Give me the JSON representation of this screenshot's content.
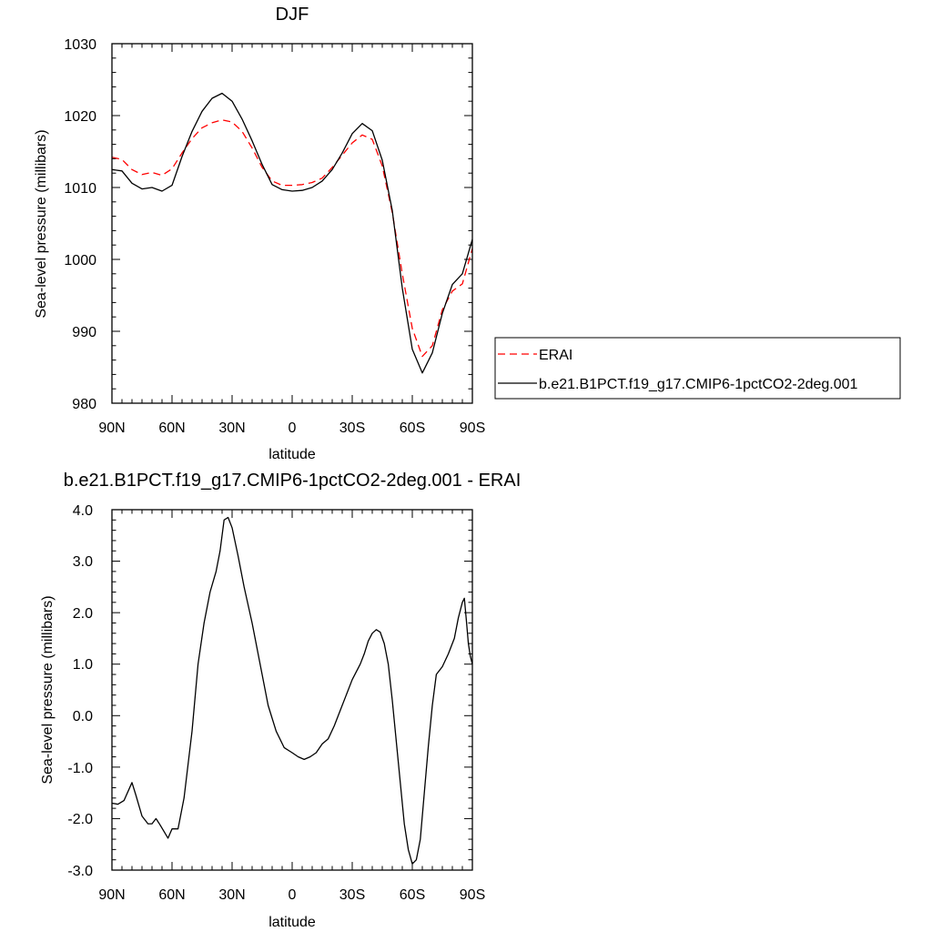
{
  "chart_data": [
    {
      "type": "line",
      "title": "DJF",
      "xlabel": "latitude",
      "ylabel": "Sea-level pressure (millibars)",
      "xlim": [
        90,
        -90
      ],
      "ylim": [
        980,
        1030
      ],
      "x_ticks": [
        90,
        60,
        30,
        0,
        -30,
        -60,
        -90
      ],
      "x_tick_labels": [
        "90N",
        "60N",
        "30N",
        "0",
        "30S",
        "60S",
        "90S"
      ],
      "y_ticks": [
        980,
        990,
        1000,
        1010,
        1020,
        1030
      ],
      "y_tick_labels": [
        "980",
        "990",
        "1000",
        "1010",
        "1020",
        "1030"
      ],
      "grid": false,
      "legend_position": "outside-right",
      "series": [
        {
          "name": "ERAI",
          "color": "#ff0000",
          "style": "dashed",
          "x": [
            90,
            85,
            80,
            75,
            70,
            65,
            60,
            55,
            50,
            45,
            40,
            35,
            30,
            25,
            20,
            15,
            10,
            5,
            0,
            -5,
            -10,
            -15,
            -20,
            -25,
            -30,
            -35,
            -40,
            -45,
            -50,
            -55,
            -60,
            -65,
            -70,
            -75,
            -80,
            -85,
            -90
          ],
          "values": [
            1014.2,
            1013.9,
            1012.5,
            1011.8,
            1012.1,
            1011.7,
            1012.6,
            1014.8,
            1016.8,
            1018.3,
            1019.0,
            1019.4,
            1019.1,
            1017.8,
            1015.5,
            1012.8,
            1010.9,
            1010.3,
            1010.3,
            1010.4,
            1010.7,
            1011.3,
            1012.8,
            1014.5,
            1016.2,
            1017.3,
            1016.7,
            1013.0,
            1006.5,
            998.0,
            990.4,
            986.5,
            988.0,
            993.0,
            995.6,
            996.6,
            1001.5
          ]
        },
        {
          "name": "b.e21.B1PCT.f19_g17.CMIP6-1pctCO2-2deg.001",
          "color": "#000000",
          "style": "solid",
          "x": [
            90,
            85,
            80,
            75,
            70,
            65,
            60,
            55,
            50,
            45,
            40,
            35,
            30,
            25,
            20,
            15,
            10,
            5,
            0,
            -5,
            -10,
            -15,
            -20,
            -25,
            -30,
            -35,
            -40,
            -45,
            -50,
            -55,
            -60,
            -65,
            -70,
            -75,
            -80,
            -85,
            -90
          ],
          "values": [
            1012.5,
            1012.3,
            1010.6,
            1009.8,
            1010.0,
            1009.5,
            1010.3,
            1014.3,
            1017.8,
            1020.6,
            1022.4,
            1023.1,
            1022.0,
            1019.5,
            1016.5,
            1013.2,
            1010.4,
            1009.7,
            1009.5,
            1009.6,
            1010.0,
            1010.9,
            1012.5,
            1014.8,
            1017.5,
            1018.9,
            1017.9,
            1013.8,
            1006.8,
            996.0,
            987.5,
            984.2,
            987.0,
            992.5,
            996.5,
            998.0,
            1002.8
          ]
        }
      ]
    },
    {
      "type": "line",
      "title": "b.e21.B1PCT.f19_g17.CMIP6-1pctCO2-2deg.001 - ERAI",
      "xlabel": "latitude",
      "ylabel": "Sea-level pressure (millibars)",
      "xlim": [
        90,
        -90
      ],
      "ylim": [
        -3.0,
        4.0
      ],
      "x_ticks": [
        90,
        60,
        30,
        0,
        -30,
        -60,
        -90
      ],
      "x_tick_labels": [
        "90N",
        "60N",
        "30N",
        "0",
        "30S",
        "60S",
        "90S"
      ],
      "y_ticks": [
        -3,
        -2,
        -1,
        0,
        1,
        2,
        3,
        4
      ],
      "y_tick_labels": [
        "-3.0",
        "-2.0",
        "-1.0",
        "0.0",
        "1.0",
        "2.0",
        "3.0",
        "4.0"
      ],
      "grid": false,
      "series": [
        {
          "color": "#000000",
          "style": "solid",
          "x": [
            90,
            87,
            84,
            80,
            78,
            75,
            72,
            70,
            68,
            66,
            64,
            62,
            60,
            57,
            54,
            50,
            47,
            44,
            41,
            38,
            36,
            34,
            32,
            30,
            27,
            24,
            20,
            16,
            12,
            8,
            4,
            0,
            -3,
            -6,
            -9,
            -12,
            -15,
            -18,
            -21,
            -24,
            -27,
            -30,
            -32,
            -34,
            -36,
            -38,
            -40,
            -42,
            -44,
            -46,
            -48,
            -50,
            -52,
            -54,
            -56,
            -58,
            -60,
            -62,
            -64,
            -66,
            -68,
            -70,
            -72,
            -75,
            -78,
            -81,
            -83,
            -85,
            -86,
            -87,
            -88,
            -89,
            -90
          ],
          "values": [
            -1.7,
            -1.72,
            -1.65,
            -1.3,
            -1.55,
            -1.95,
            -2.1,
            -2.1,
            -2.0,
            -2.12,
            -2.25,
            -2.38,
            -2.2,
            -2.2,
            -1.6,
            -0.3,
            1.0,
            1.8,
            2.4,
            2.8,
            3.2,
            3.8,
            3.85,
            3.65,
            3.1,
            2.5,
            1.8,
            1.0,
            0.2,
            -0.3,
            -0.62,
            -0.72,
            -0.8,
            -0.85,
            -0.8,
            -0.72,
            -0.55,
            -0.45,
            -0.2,
            0.1,
            0.4,
            0.7,
            0.85,
            1.0,
            1.2,
            1.45,
            1.6,
            1.67,
            1.62,
            1.4,
            1.0,
            0.3,
            -0.5,
            -1.3,
            -2.1,
            -2.6,
            -2.88,
            -2.8,
            -2.4,
            -1.5,
            -0.6,
            0.2,
            0.8,
            0.95,
            1.2,
            1.5,
            1.9,
            2.2,
            2.28,
            1.85,
            1.4,
            1.15,
            1.0
          ]
        }
      ]
    }
  ]
}
